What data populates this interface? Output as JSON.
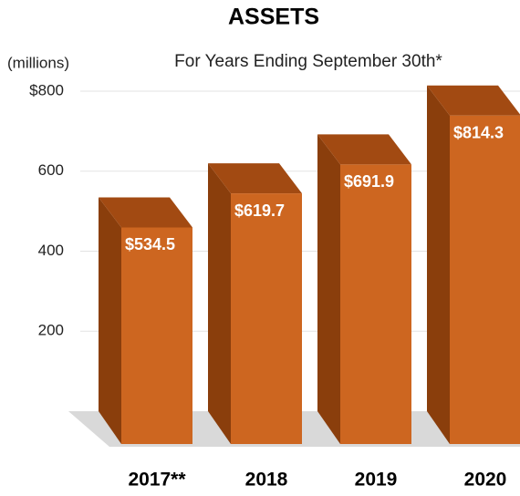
{
  "chart_data": {
    "type": "bar3d",
    "title": "ASSETS",
    "subtitle": "For Years Ending September 30th*",
    "y_label": "(millions)",
    "categories": [
      "2017**",
      "2018",
      "2019",
      "2020"
    ],
    "values": [
      534.5,
      619.7,
      691.9,
      814.3
    ],
    "value_labels": [
      "$534.5",
      "$619.7",
      "$691.9",
      "$814.3"
    ],
    "color": "#cd6620",
    "ylim": [
      0,
      800
    ],
    "yticks": [
      200,
      400,
      600,
      {
        "value": 800,
        "label": "$800"
      }
    ],
    "grid": true
  }
}
